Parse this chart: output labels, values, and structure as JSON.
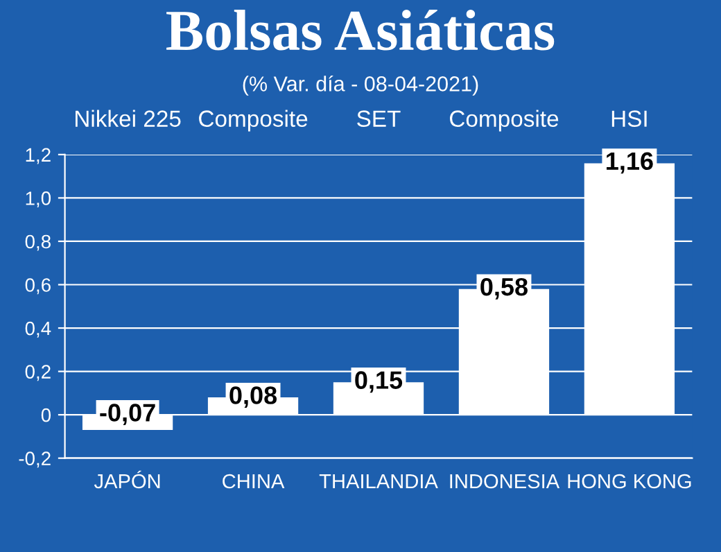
{
  "chart_data": {
    "type": "bar",
    "title": "Bolsas Asiáticas",
    "subtitle": "(% Var. día - 08-04-2021)",
    "categories": [
      "JAPÓN",
      "CHINA",
      "THAILANDIA",
      "INDONESIA",
      "HONG KONG"
    ],
    "values": [
      -0.07,
      0.08,
      0.15,
      0.58,
      1.16
    ],
    "value_labels": [
      "-0,07",
      "0,08",
      "0,15",
      "0,58",
      "1,16"
    ],
    "color": "#ffffff",
    "annotations": [
      "Nikkei 225",
      "Composite",
      "SET",
      "Composite",
      "HSI"
    ],
    "ylim": [
      -0.2,
      1.2
    ],
    "yticks": [
      {
        "value": -0.2,
        "label": "-0,2"
      },
      {
        "value": 0,
        "label": "0"
      },
      {
        "value": 0.2,
        "label": "0,2"
      },
      {
        "value": 0.4,
        "label": "0,4"
      },
      {
        "value": 0.6,
        "label": "0,6"
      },
      {
        "value": 0.8,
        "label": "0,8"
      },
      {
        "value": 1.0,
        "label": "1,0"
      },
      {
        "value": 1.2,
        "label": "1,2"
      }
    ],
    "grid": "y"
  }
}
